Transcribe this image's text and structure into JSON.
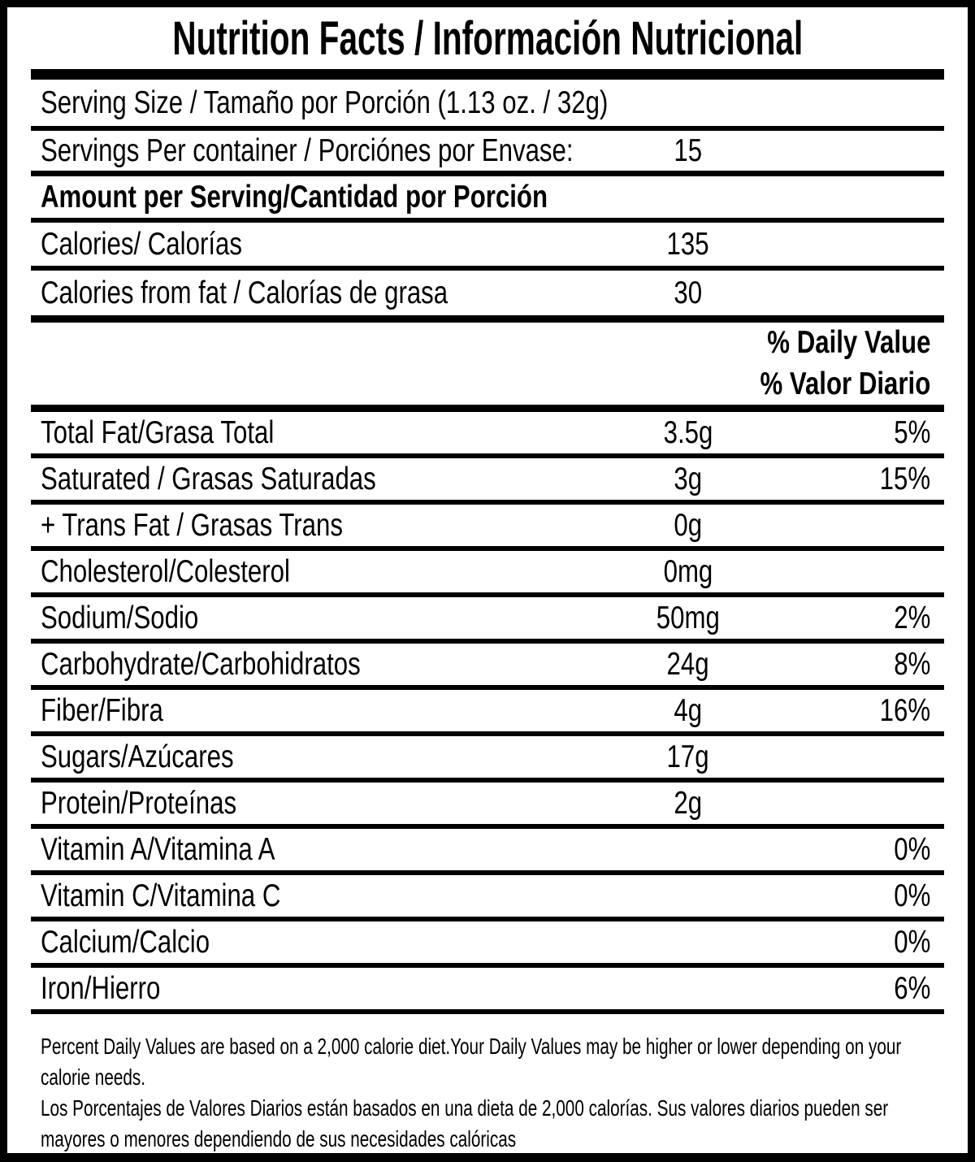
{
  "colors": {
    "ink": "#000000",
    "paper": "#ffffff"
  },
  "title": "Nutrition Facts / Información Nutricional",
  "serving": {
    "size_label": "Serving Size / Tamaño por Porción (1.13 oz. / 32g)",
    "per_container_label": "Servings Per container / Porciónes por Envase:",
    "per_container_value": "15"
  },
  "amount_header": "Amount per Serving/Cantidad por Porción",
  "calories": {
    "label": "Calories/ Calorías",
    "value": "135"
  },
  "calories_from_fat": {
    "label": "Calories from fat / Calorías de grasa",
    "value": "30"
  },
  "daily_value_header": {
    "en": "% Daily Value",
    "es": "% Valor Diario"
  },
  "nutrients": [
    {
      "label": "Total Fat/Grasa Total",
      "amount": "3.5g",
      "dv": "5%"
    },
    {
      "label": "Saturated / Grasas Saturadas",
      "amount": "3g",
      "dv": "15%"
    },
    {
      "label": "+ Trans Fat / Grasas Trans",
      "amount": "0g",
      "dv": ""
    },
    {
      "label": "Cholesterol/Colesterol",
      "amount": "0mg",
      "dv": ""
    },
    {
      "label": "Sodium/Sodio",
      "amount": "50mg",
      "dv": "2%"
    },
    {
      "label": "Carbohydrate/Carbohidratos",
      "amount": "24g",
      "dv": "8%"
    },
    {
      "label": "Fiber/Fibra",
      "amount": "4g",
      "dv": "16%"
    },
    {
      "label": "Sugars/Azúcares",
      "amount": "17g",
      "dv": ""
    },
    {
      "label": "Protein/Proteínas",
      "amount": "2g",
      "dv": ""
    },
    {
      "label": "Vitamin A/Vitamina A",
      "amount": "",
      "dv": "0%"
    },
    {
      "label": "Vitamin C/Vitamina C",
      "amount": "",
      "dv": "0%"
    },
    {
      "label": "Calcium/Calcio",
      "amount": "",
      "dv": "0%"
    },
    {
      "label": "Iron/Hierro",
      "amount": "",
      "dv": "6%"
    }
  ],
  "footnote": {
    "text": "Percent Daily Values are based on a 2,000 calorie diet.Your Daily Values may be higher or lower depending on your\ncalorie needs.\nLos Porcentajes de Valores Diarios están basados en una dieta de 2,000 calorías. Sus valores diarios pueden ser\nmayores o menores dependiendo de sus necesidades calóricas"
  }
}
